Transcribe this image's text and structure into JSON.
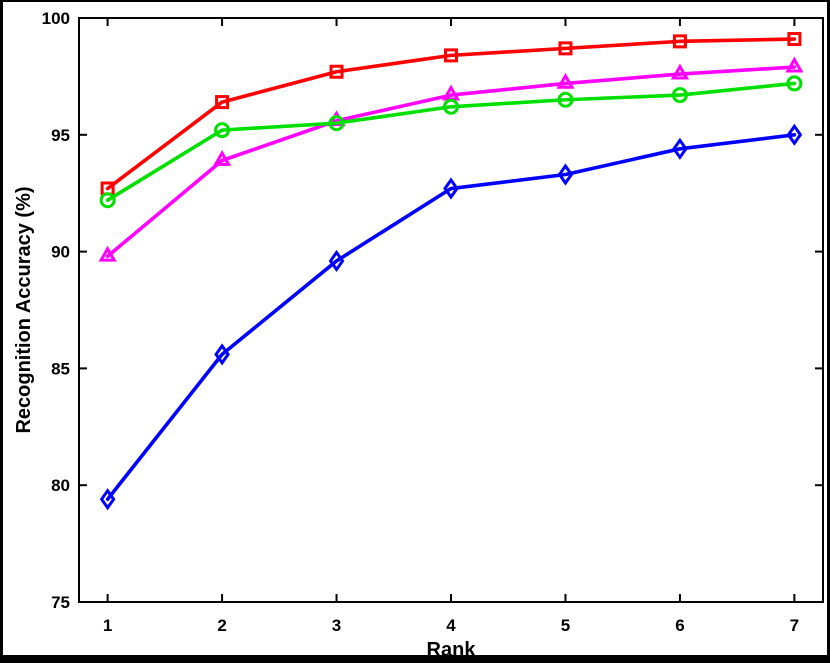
{
  "figure": {
    "background": "#ffffff",
    "frame_color": "#000000",
    "axis_color": "#000000",
    "tick_label_fontsize": 17,
    "axis_label_fontsize": 20
  },
  "chart_data": {
    "type": "line",
    "title": "",
    "xlabel": "Rank",
    "ylabel": "Recognition Accuracy (%)",
    "x": [
      1,
      2,
      3,
      4,
      5,
      6,
      7
    ],
    "xlim": [
      0.75,
      7.25
    ],
    "ylim": [
      75,
      100
    ],
    "xticks": [
      1,
      2,
      3,
      4,
      5,
      6,
      7
    ],
    "yticks": [
      75,
      80,
      85,
      90,
      95,
      100
    ],
    "grid": false,
    "legend": "none",
    "box": true,
    "series": [
      {
        "name": "red-squares",
        "color": "#ff0000",
        "marker": "square",
        "values": [
          92.7,
          96.4,
          97.7,
          98.4,
          98.7,
          99.0,
          99.1
        ]
      },
      {
        "name": "magenta-triangles",
        "color": "#ff00ff",
        "marker": "triangle-up",
        "values": [
          89.8,
          93.9,
          95.6,
          96.7,
          97.2,
          97.6,
          97.9
        ]
      },
      {
        "name": "green-circles",
        "color": "#00e000",
        "marker": "circle",
        "values": [
          92.2,
          95.2,
          95.5,
          96.2,
          96.5,
          96.7,
          97.2
        ]
      },
      {
        "name": "blue-diamonds",
        "color": "#0000ff",
        "marker": "diamond",
        "values": [
          79.4,
          85.6,
          89.6,
          92.7,
          93.3,
          94.4,
          95.0
        ]
      }
    ]
  }
}
